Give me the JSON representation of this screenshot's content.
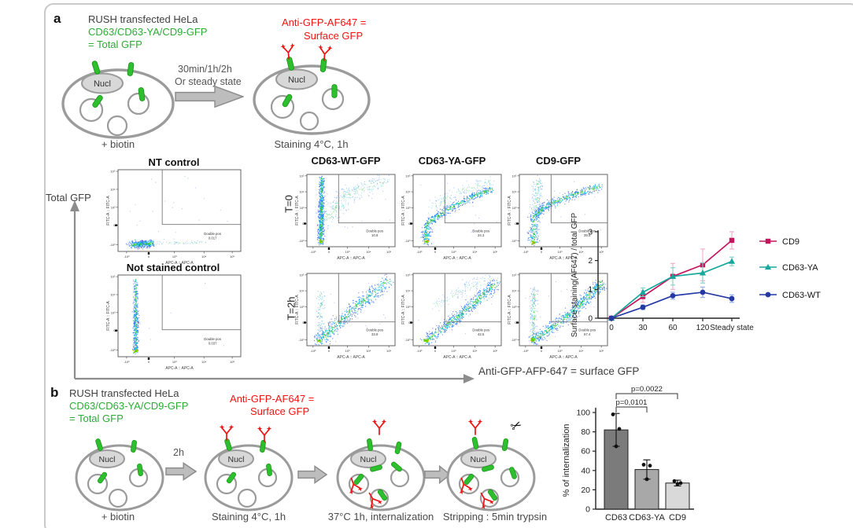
{
  "panel_a": {
    "label": "a",
    "header": {
      "line1": "RUSH transfected HeLa",
      "green1": "CD63/CD63-YA/CD9-GFP",
      "green2": "= Total GFP"
    },
    "red_label": {
      "line1": "Anti-GFP-AF647 =",
      "line2": "Surface GFP"
    },
    "arrow_label": {
      "line1": "30min/1h/2h",
      "line2": "Or steady state"
    },
    "cell1_caption": "+ biotin",
    "cell2_caption": "Staining 4°C, 1h",
    "nucleus_label": "Nucl"
  },
  "flow": {
    "left_axis_label": "Total GFP",
    "bottom_axis_label": "Anti-GFP-AFP-647 = surface GFP",
    "gate_label": "Double pos",
    "row_labels": [
      "T=0",
      "T=2h"
    ],
    "col_titles": [
      "CD63-WT-GFP",
      "CD63-YA-GFP",
      "CD9-GFP"
    ],
    "controls": [
      {
        "title": "NT control",
        "gate_value": "0.017"
      },
      {
        "title": "Not stained control",
        "gate_value": "0.037"
      }
    ],
    "plots": [
      {
        "row": "T=0",
        "col": "CD63-WT-GFP",
        "gate_value": "10.8"
      },
      {
        "row": "T=0",
        "col": "CD63-YA-GFP",
        "gate_value": "24.3"
      },
      {
        "row": "T=0",
        "col": "CD9-GFP",
        "gate_value": "39.5"
      },
      {
        "row": "T=2h",
        "col": "CD63-WT-GFP",
        "gate_value": "33.9"
      },
      {
        "row": "T=2h",
        "col": "CD63-YA-GFP",
        "gate_value": "42.5"
      },
      {
        "row": "T=2h",
        "col": "CD9-GFP",
        "gate_value": "67.4"
      }
    ],
    "axis_x_label": "APC-A :: APC-A",
    "axis_y_label": "FITC-A :: FITC-A",
    "x_tick_labels": [
      "-10³",
      "0",
      "10³",
      "10⁴",
      "10⁵"
    ],
    "y_tick_labels": [
      "10⁵",
      "10⁴",
      "10³",
      "0",
      "-10³"
    ]
  },
  "chart_data": [
    {
      "id": "surface_staining_timecourse",
      "type": "line",
      "ylabel": "Surface staining(AF647) / total GFP",
      "xlabel": "",
      "categories": [
        "0",
        "30",
        "60",
        "120",
        "Steady state"
      ],
      "ylim": [
        0,
        3
      ],
      "yticks": [
        0,
        1,
        2,
        3
      ],
      "grid": false,
      "legend_position": "right",
      "series": [
        {
          "name": "CD9",
          "color": "#c4165f",
          "err_color": "#f0a8cb",
          "marker": "square",
          "values": [
            0,
            0.75,
            1.45,
            1.85,
            2.7
          ],
          "errors": [
            0.03,
            0.2,
            0.45,
            0.55,
            0.3
          ]
        },
        {
          "name": "CD63-YA",
          "color": "#17a89d",
          "err_color": "#7fd0c8",
          "marker": "triangle",
          "values": [
            0,
            0.9,
            1.45,
            1.57,
            1.97
          ],
          "errors": [
            0.03,
            0.15,
            0.3,
            0.35,
            0.15
          ]
        },
        {
          "name": "CD63-WT",
          "color": "#2438a6",
          "err_color": "#92a8e8",
          "marker": "circle",
          "values": [
            0,
            0.38,
            0.78,
            0.9,
            0.68
          ],
          "errors": [
            0.03,
            0.08,
            0.12,
            0.18,
            0.13
          ]
        }
      ]
    },
    {
      "id": "internalization",
      "type": "bar",
      "ylabel": "% of internalization",
      "categories": [
        "CD63",
        "CD63-YA",
        "CD9"
      ],
      "values": [
        82,
        41,
        27
      ],
      "errors": [
        17,
        10,
        3
      ],
      "points": [
        [
          98,
          83,
          65
        ],
        [
          46,
          45,
          31
        ],
        [
          29,
          27,
          26
        ]
      ],
      "bar_colors": [
        "#7b7b7b",
        "#a8a8a8",
        "#d9d9d9"
      ],
      "ylim": [
        0,
        100
      ],
      "yticks": [
        0,
        20,
        40,
        60,
        80,
        100
      ],
      "significance": [
        {
          "label": "p=0.0022",
          "from": 0,
          "to": 2
        },
        {
          "label": "p=0,0101",
          "from": 0,
          "to": 1
        }
      ]
    }
  ],
  "panel_b": {
    "label": "b",
    "header": {
      "line1": "RUSH transfected HeLa",
      "green1": "CD63/CD63-YA/CD9-GFP",
      "green2": "= Total GFP"
    },
    "red_label": {
      "line1": "Anti-GFP-AF647 =",
      "line2": "Surface GFP"
    },
    "nucleus_label": "Nucl",
    "steps": {
      "cell1_caption": "+ biotin",
      "arrow1_label": "2h",
      "cell2_caption": "Staining 4°C, 1h",
      "cell3_caption": "37°C 1h, internalization",
      "cell4_caption": "Stripping : 5min trypsin"
    }
  }
}
